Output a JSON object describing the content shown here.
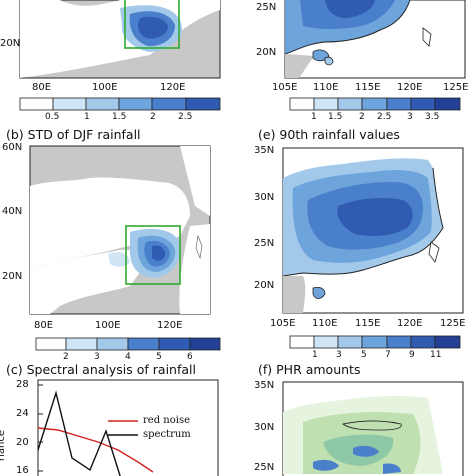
{
  "panels": {
    "a": {
      "lat_labels": [
        "20N"
      ],
      "lon_labels": [
        "80E",
        "100E",
        "120E"
      ],
      "colorbar_labels": [
        "0.5",
        "1",
        "1.5",
        "2",
        "2.5"
      ]
    },
    "b": {
      "title": "(b)  STD of DJF rainfall",
      "lat_labels": [
        "60N",
        "40N",
        "20N"
      ],
      "lon_labels": [
        "80E",
        "100E",
        "120E"
      ],
      "colorbar_labels": [
        "2",
        "3",
        "4",
        "5",
        "6"
      ]
    },
    "c": {
      "title": "(c)  Spectral analysis of rainfall",
      "y_label": "riance",
      "y_ticks": [
        "28",
        "24",
        "20",
        "16"
      ],
      "legend": [
        "red noise",
        "spectrum"
      ]
    },
    "d": {
      "lat_labels": [
        "25N",
        "20N"
      ],
      "lon_labels": [
        "105E",
        "110E",
        "115E",
        "120E",
        "125E"
      ],
      "colorbar_labels": [
        "1",
        "1.5",
        "2",
        "2.5",
        "3",
        "3.5"
      ]
    },
    "e": {
      "title": "(e)  90th rainfall values",
      "lat_labels": [
        "35N",
        "30N",
        "25N",
        "20N"
      ],
      "lon_labels": [
        "105E",
        "110E",
        "115E",
        "120E",
        "125E"
      ],
      "colorbar_labels": [
        "1",
        "3",
        "5",
        "7",
        "9",
        "11"
      ]
    },
    "f": {
      "title": "(f)  PHR amounts",
      "lat_labels": [
        "35N",
        "30N",
        "25N"
      ]
    }
  },
  "colors": {
    "land_gray": "#c8c8c8",
    "blue_scale": [
      "#ffffff",
      "#cfe4f4",
      "#a3c9ea",
      "#6ea4dc",
      "#4a7fcb",
      "#2f5bb0",
      "#233f96"
    ],
    "box_green": "#2eaa2e",
    "red_noise": "#d42020",
    "spectrum": "#111111",
    "green_scale": [
      "#e6f3df",
      "#bfe0b1",
      "#8fc8a6"
    ]
  }
}
